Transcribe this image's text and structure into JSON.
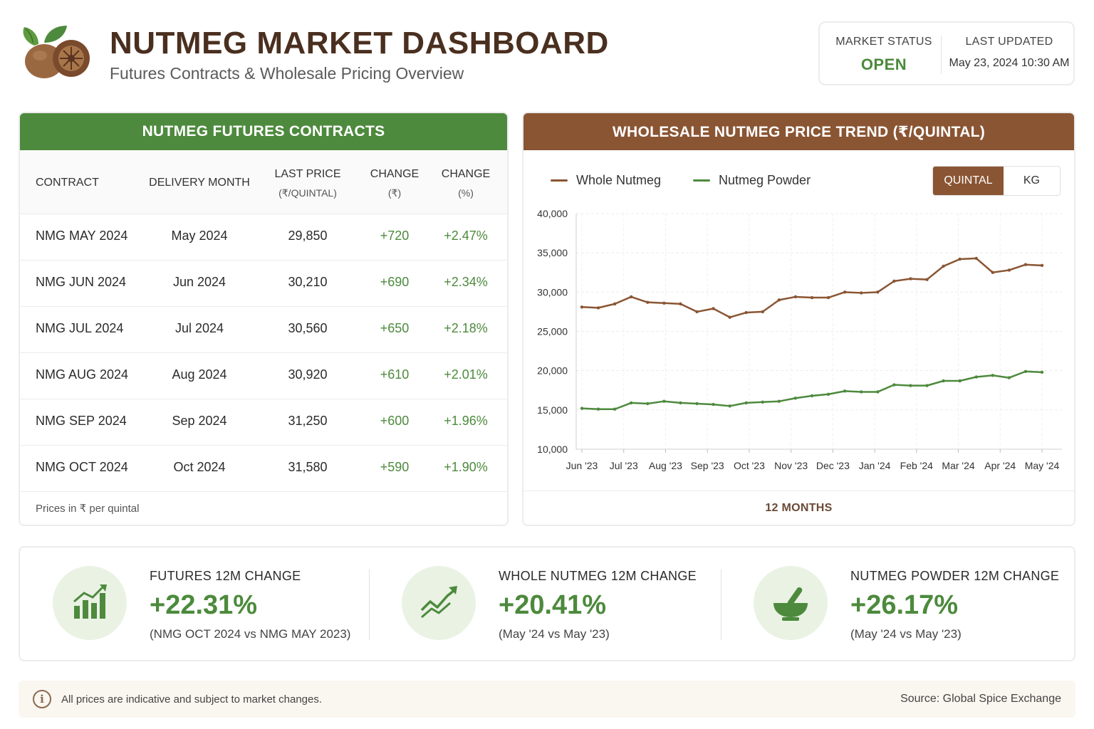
{
  "header": {
    "title": "NUTMEG MARKET DASHBOARD",
    "subtitle": "Futures Contracts & Wholesale Pricing Overview",
    "market_status_label": "MARKET STATUS",
    "market_status_value": "OPEN",
    "last_updated_label": "LAST UPDATED",
    "last_updated_value": "May 23, 2024 10:30 AM"
  },
  "futures": {
    "title": "NUTMEG FUTURES CONTRACTS",
    "columns": {
      "contract": "CONTRACT",
      "delivery": "DELIVERY MONTH",
      "last_price": "LAST PRICE",
      "last_price_unit": "(₹/QUINTAL)",
      "change": "CHANGE",
      "change_unit": "(₹)",
      "change_pct": "CHANGE",
      "change_pct_unit": "(%)"
    },
    "rows": [
      {
        "contract": "NMG MAY 2024",
        "delivery": "May 2024",
        "price": "29,850",
        "change": "+720",
        "pct": "+2.47%"
      },
      {
        "contract": "NMG JUN 2024",
        "delivery": "Jun 2024",
        "price": "30,210",
        "change": "+690",
        "pct": "+2.34%"
      },
      {
        "contract": "NMG JUL 2024",
        "delivery": "Jul 2024",
        "price": "30,560",
        "change": "+650",
        "pct": "+2.18%"
      },
      {
        "contract": "NMG AUG 2024",
        "delivery": "Aug 2024",
        "price": "30,920",
        "change": "+610",
        "pct": "+2.01%"
      },
      {
        "contract": "NMG SEP 2024",
        "delivery": "Sep 2024",
        "price": "31,250",
        "change": "+600",
        "pct": "+1.96%"
      },
      {
        "contract": "NMG OCT 2024",
        "delivery": "Oct 2024",
        "price": "31,580",
        "change": "+590",
        "pct": "+1.90%"
      }
    ],
    "footnote": "Prices in ₹ per quintal"
  },
  "trend": {
    "title": "WHOLESALE NUTMEG PRICE TREND (₹/QUINTAL)",
    "toggle_quintal": "QUINTAL",
    "toggle_kg": "KG",
    "range_label": "12 MONTHS"
  },
  "chart_data": {
    "type": "line",
    "x_labels": [
      "Jun '23",
      "Jul '23",
      "Aug '23",
      "Sep '23",
      "Oct '23",
      "Nov '23",
      "Dec '23",
      "Jan '24",
      "Feb '24",
      "Mar '24",
      "Apr '24",
      "May '24"
    ],
    "y_ticks": [
      "40,000",
      "35,000",
      "30,000",
      "25,000",
      "20,000",
      "15,000",
      "10,000"
    ],
    "ylim": [
      10000,
      40000
    ],
    "grid": true,
    "legend_position": "top-left",
    "series": [
      {
        "name": "Whole Nutmeg",
        "color": "#8a5533",
        "values": [
          28100,
          28000,
          28500,
          29400,
          28700,
          28600,
          28500,
          27500,
          27900,
          26800,
          27400,
          27500,
          29000,
          29400,
          29300,
          29300,
          30000,
          29900,
          30000,
          31400,
          31700,
          31600,
          33300,
          34200,
          34300,
          32500,
          32800,
          33500,
          33400
        ]
      },
      {
        "name": "Nutmeg Powder",
        "color": "#4d8a3d",
        "values": [
          15200,
          15100,
          15100,
          15900,
          15800,
          16100,
          15900,
          15800,
          15700,
          15500,
          15900,
          16000,
          16100,
          16500,
          16800,
          17000,
          17400,
          17300,
          17300,
          18200,
          18100,
          18100,
          18700,
          18700,
          19200,
          19400,
          19100,
          19900,
          19800
        ]
      }
    ]
  },
  "summary": [
    {
      "label": "FUTURES 12M CHANGE",
      "value": "+22.31%",
      "note": "(NMG OCT 2024 vs NMG MAY 2023)",
      "icon": "bar-chart-icon"
    },
    {
      "label": "WHOLE NUTMEG 12M CHANGE",
      "value": "+20.41%",
      "note": "(May '24 vs May '23)",
      "icon": "trend-line-icon"
    },
    {
      "label": "NUTMEG POWDER 12M CHANGE",
      "value": "+26.17%",
      "note": "(May '24 vs May '23)",
      "icon": "mortar-pestle-icon"
    }
  ],
  "footer": {
    "info_glyph": "i",
    "disclaimer": "All prices are indicative and subject to market changes.",
    "source": "Source: Global Spice Exchange"
  },
  "colors": {
    "green": "#4d8a3d",
    "brown": "#8a5533",
    "positive": "#4c8a3c"
  }
}
